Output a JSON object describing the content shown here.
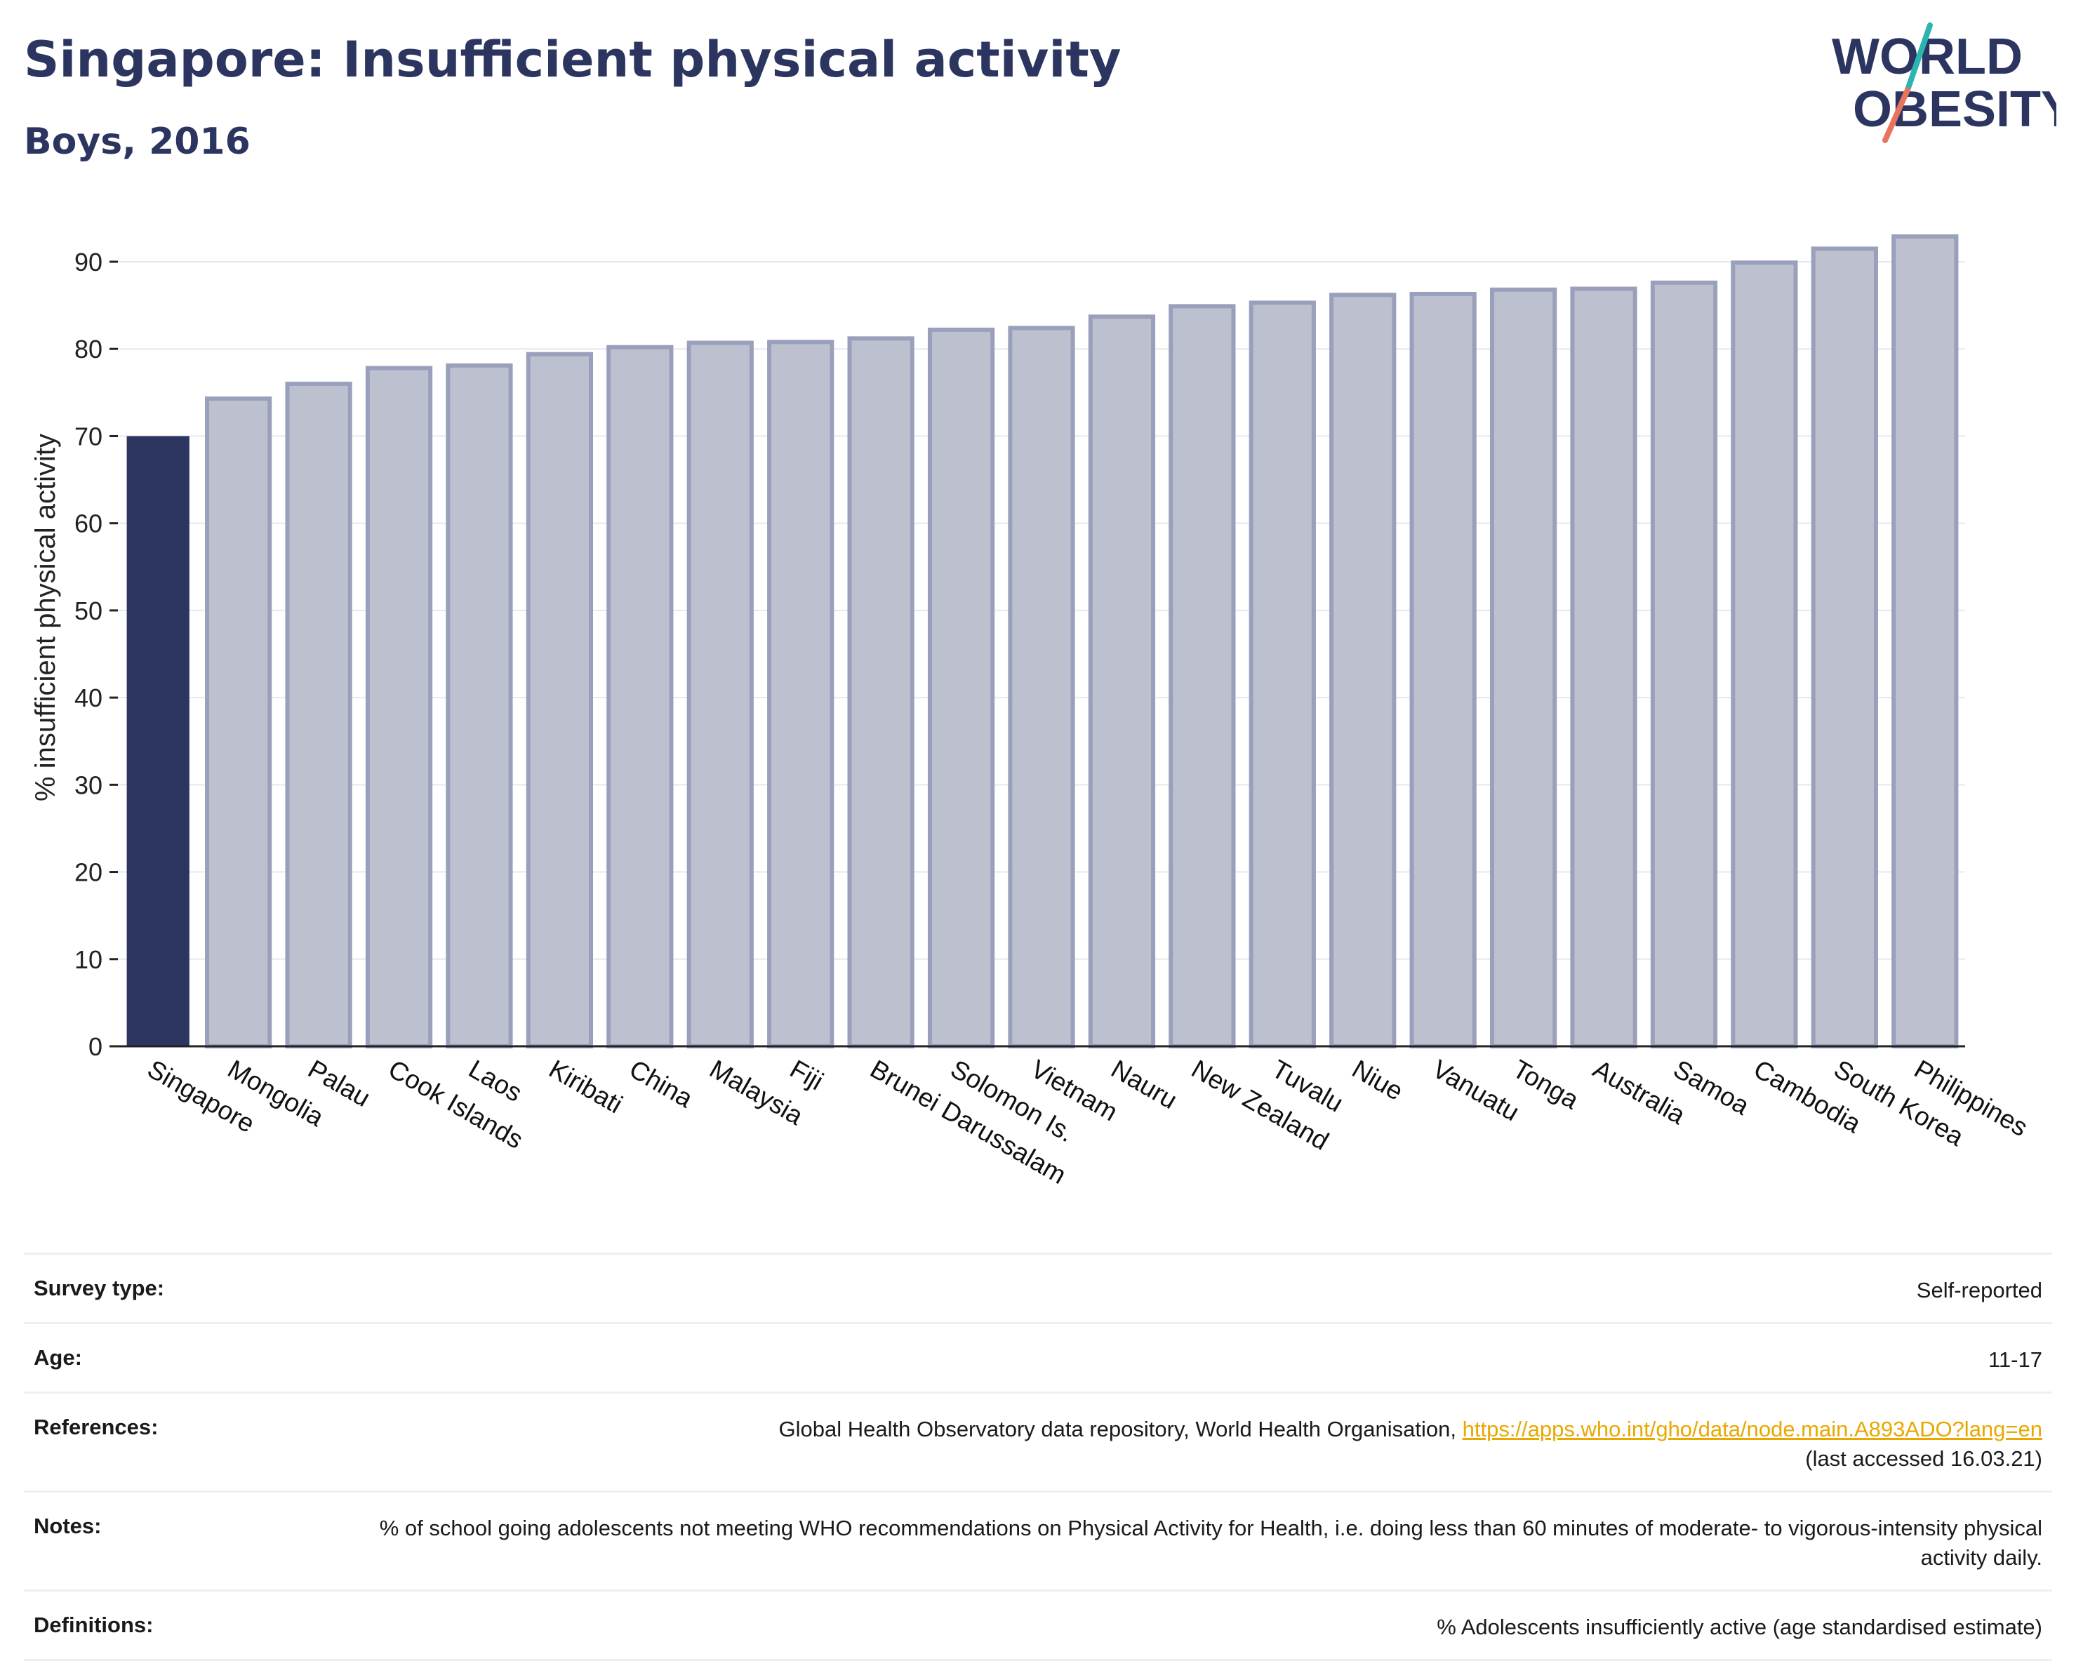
{
  "title": "Singapore: Insufficient physical activity",
  "subtitle": "Boys, 2016",
  "logo": {
    "line1": "WORLD",
    "line2": "OBESITY"
  },
  "chart_data": {
    "type": "bar",
    "ylabel": "% insufficient physical activity",
    "xlabel": "",
    "ylim": [
      0,
      95
    ],
    "yticks": [
      0,
      10,
      20,
      30,
      40,
      50,
      60,
      70,
      80,
      90
    ],
    "grid": true,
    "highlight": "Singapore",
    "colors": {
      "highlight": "#2b3560",
      "other_fill": "#bcc0cf",
      "other_stroke": "#9aa0bb"
    },
    "categories": [
      "Singapore",
      "Mongolia",
      "Palau",
      "Cook Islands",
      "Laos",
      "Kiribati",
      "China",
      "Malaysia",
      "Fiji",
      "Brunei Darussalam",
      "Solomon Is.",
      "Vietnam",
      "Nauru",
      "New Zealand",
      "Tuvalu",
      "Niue",
      "Vanuatu",
      "Tonga",
      "Australia",
      "Samoa",
      "Cambodia",
      "South Korea",
      "Philippines"
    ],
    "values": [
      70.0,
      74.3,
      76.0,
      77.8,
      78.1,
      79.4,
      80.2,
      80.7,
      80.8,
      81.2,
      82.2,
      82.4,
      83.7,
      84.9,
      85.3,
      86.2,
      86.3,
      86.8,
      86.9,
      87.6,
      89.9,
      91.5,
      92.9
    ]
  },
  "info": [
    {
      "label": "Survey type:",
      "value": "Self-reported"
    },
    {
      "label": "Age:",
      "value": "11-17"
    },
    {
      "label": "References:",
      "value_prefix": "Global Health Observatory data repository, World Health Organisation, ",
      "link": "https://apps.who.int/gho/data/node.main.A893ADO?lang=en",
      "value_suffix": "(last accessed 16.03.21)"
    },
    {
      "label": "Notes:",
      "value": "% of school going adolescents not meeting WHO recommendations on Physical Activity for Health, i.e. doing less than 60 minutes of moderate- to vigorous-intensity physical activity daily."
    },
    {
      "label": "Definitions:",
      "value": "% Adolescents insufficiently active (age standardised estimate)"
    }
  ]
}
